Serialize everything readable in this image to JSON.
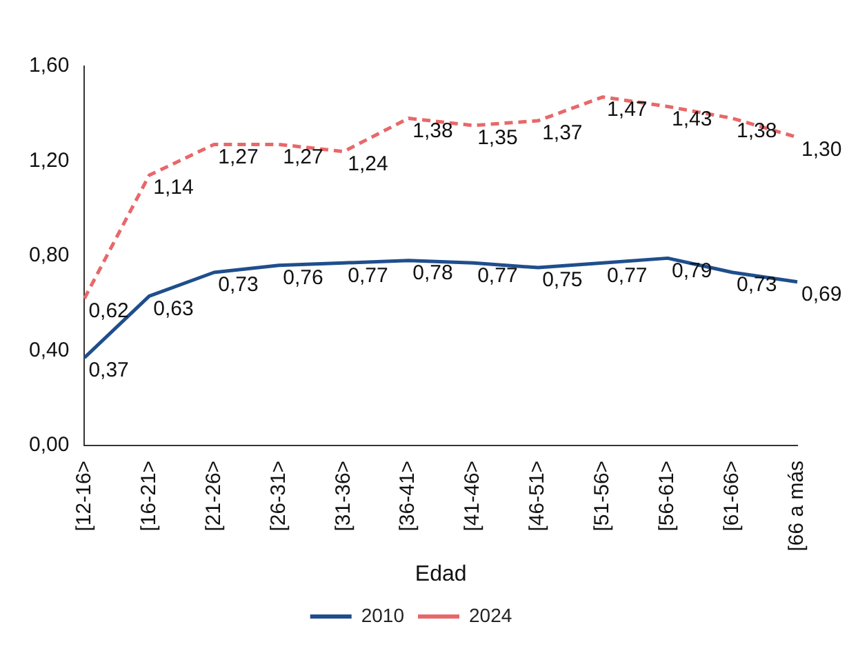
{
  "chart_data": {
    "type": "line",
    "xlabel": "Edad",
    "categories": [
      "[12-16>",
      "[16-21>",
      "[21-26>",
      "[26-31>",
      "[31-36>",
      "[36-41>",
      "[41-46>",
      "[46-51>",
      "[51-56>",
      "[56-61>",
      "[61-66>",
      "[66 a más"
    ],
    "ylim": [
      0,
      1.6
    ],
    "yticks": [
      {
        "value": 0,
        "label": "0,00"
      },
      {
        "value": 0.4,
        "label": "0,40"
      },
      {
        "value": 0.8,
        "label": "0,80"
      },
      {
        "value": 1.2,
        "label": "1,20"
      },
      {
        "value": 1.6,
        "label": "1,60"
      }
    ],
    "grid": false,
    "legend": "bottom",
    "marker": "none",
    "series": [
      {
        "name": "2010",
        "color": "#1f4e8c",
        "line_style": "solid",
        "values": [
          0.37,
          0.63,
          0.73,
          0.76,
          0.77,
          0.78,
          0.77,
          0.75,
          0.77,
          0.79,
          0.73,
          0.69
        ],
        "value_labels": [
          "0,37",
          "0,63",
          "0,73",
          "0,76",
          "0,77",
          "0,78",
          "0,77",
          "0,75",
          "0,77",
          "0,79",
          "0,73",
          "0,69"
        ]
      },
      {
        "name": "2024",
        "color": "#e8686a",
        "line_style": "dashed",
        "values": [
          0.62,
          1.14,
          1.27,
          1.27,
          1.24,
          1.38,
          1.35,
          1.37,
          1.47,
          1.43,
          1.38,
          1.3
        ],
        "value_labels": [
          "0,62",
          "1,14",
          "1,27",
          "1,27",
          "1,24",
          "1,38",
          "1,35",
          "1,37",
          "1,47",
          "1,43",
          "1,38",
          "1,30"
        ]
      }
    ]
  }
}
